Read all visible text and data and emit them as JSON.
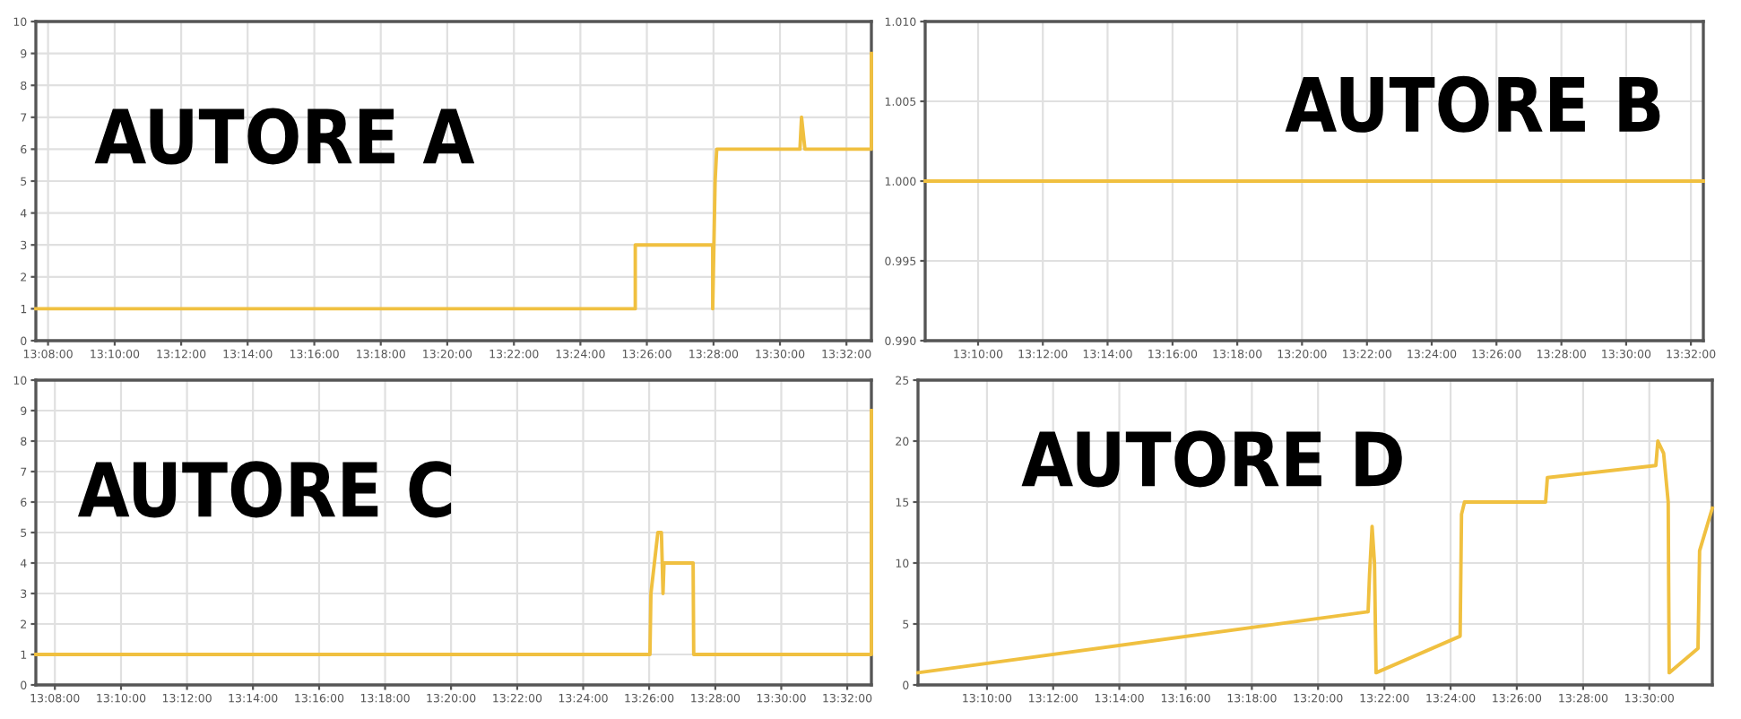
{
  "chart_data": [
    {
      "type": "line",
      "title": "AUTORE A",
      "grid": true,
      "xlim": [
        13.1272,
        13.5458
      ],
      "ylim": [
        0,
        10
      ],
      "yticks": [
        0,
        1,
        2,
        3,
        4,
        5,
        6,
        7,
        8,
        9,
        10
      ],
      "xticks": [
        {
          "value": 13.1333,
          "label": "13:08:00"
        },
        {
          "value": 13.1667,
          "label": "13:10:00"
        },
        {
          "value": 13.2,
          "label": "13:12:00"
        },
        {
          "value": 13.2333,
          "label": "13:14:00"
        },
        {
          "value": 13.2667,
          "label": "13:16:00"
        },
        {
          "value": 13.3,
          "label": "13:18:00"
        },
        {
          "value": 13.3333,
          "label": "13:20:00"
        },
        {
          "value": 13.3667,
          "label": "13:22:00"
        },
        {
          "value": 13.4,
          "label": "13:24:00"
        },
        {
          "value": 13.4333,
          "label": "13:26:00"
        },
        {
          "value": 13.4667,
          "label": "13:28:00"
        },
        {
          "value": 13.5,
          "label": "13:30:00"
        },
        {
          "value": 13.5333,
          "label": "13:32:00"
        }
      ],
      "series": [
        {
          "color": "#f0c040",
          "x": [
            13.1272,
            13.4275,
            13.4275,
            13.4663,
            13.4663,
            13.4675,
            13.4683,
            13.51,
            13.5108,
            13.5125,
            13.5458,
            13.5458
          ],
          "values": [
            1,
            1,
            3,
            3,
            1,
            5,
            6,
            6,
            7,
            6,
            6,
            9
          ]
        }
      ]
    },
    {
      "type": "line",
      "title": "AUTORE B",
      "grid": true,
      "xlim": [
        13.1395,
        13.5397
      ],
      "ylim": [
        0.99,
        1.01
      ],
      "yticks": [
        {
          "value": 0.99,
          "label": "0.990"
        },
        {
          "value": 0.995,
          "label": "0.995"
        },
        {
          "value": 1.0,
          "label": "1.000"
        },
        {
          "value": 1.005,
          "label": "1.005"
        },
        {
          "value": 1.01,
          "label": "1.010"
        }
      ],
      "xticks": [
        {
          "value": 13.1667,
          "label": "13:10:00"
        },
        {
          "value": 13.2,
          "label": "13:12:00"
        },
        {
          "value": 13.2333,
          "label": "13:14:00"
        },
        {
          "value": 13.2667,
          "label": "13:16:00"
        },
        {
          "value": 13.3,
          "label": "13:18:00"
        },
        {
          "value": 13.3333,
          "label": "13:20:00"
        },
        {
          "value": 13.3667,
          "label": "13:22:00"
        },
        {
          "value": 13.4,
          "label": "13:24:00"
        },
        {
          "value": 13.4333,
          "label": "13:26:00"
        },
        {
          "value": 13.4667,
          "label": "13:28:00"
        },
        {
          "value": 13.5,
          "label": "13:30:00"
        },
        {
          "value": 13.5333,
          "label": "13:32:00"
        }
      ],
      "series": [
        {
          "color": "#f0c040",
          "x": [
            13.1395,
            13.5397
          ],
          "values": [
            1.0,
            1.0
          ]
        }
      ]
    },
    {
      "type": "line",
      "title": "AUTORE C",
      "grid": true,
      "xlim": [
        13.1237,
        13.5455
      ],
      "ylim": [
        0,
        10
      ],
      "yticks": [
        0,
        1,
        2,
        3,
        4,
        5,
        6,
        7,
        8,
        9,
        10
      ],
      "xticks": [
        {
          "value": 13.1333,
          "label": "13:08:00"
        },
        {
          "value": 13.1667,
          "label": "13:10:00"
        },
        {
          "value": 13.2,
          "label": "13:12:00"
        },
        {
          "value": 13.2333,
          "label": "13:14:00"
        },
        {
          "value": 13.2667,
          "label": "13:16:00"
        },
        {
          "value": 13.3,
          "label": "13:18:00"
        },
        {
          "value": 13.3333,
          "label": "13:20:00"
        },
        {
          "value": 13.3667,
          "label": "13:22:00"
        },
        {
          "value": 13.4,
          "label": "13:24:00"
        },
        {
          "value": 13.4333,
          "label": "13:26:00"
        },
        {
          "value": 13.4667,
          "label": "13:28:00"
        },
        {
          "value": 13.5,
          "label": "13:30:00"
        },
        {
          "value": 13.5333,
          "label": "13:32:00"
        }
      ],
      "series": [
        {
          "color": "#f0c040",
          "x": [
            13.1237,
            13.4337,
            13.4342,
            13.4377,
            13.4395,
            13.4403,
            13.4408,
            13.4555,
            13.4558,
            13.5455,
            13.5455
          ],
          "values": [
            1,
            1,
            3,
            5,
            5,
            3,
            4,
            4,
            1,
            1,
            9
          ]
        }
      ]
    },
    {
      "type": "line",
      "title": "AUTORE D",
      "grid": true,
      "xlim": [
        13.132,
        13.5317
      ],
      "ylim": [
        0,
        25
      ],
      "yticks": [
        0,
        5,
        10,
        15,
        20,
        25
      ],
      "xticks": [
        {
          "value": 13.1667,
          "label": "13:10:00"
        },
        {
          "value": 13.2,
          "label": "13:12:00"
        },
        {
          "value": 13.2333,
          "label": "13:14:00"
        },
        {
          "value": 13.2667,
          "label": "13:16:00"
        },
        {
          "value": 13.3,
          "label": "13:18:00"
        },
        {
          "value": 13.3333,
          "label": "13:20:00"
        },
        {
          "value": 13.3667,
          "label": "13:22:00"
        },
        {
          "value": 13.4,
          "label": "13:24:00"
        },
        {
          "value": 13.4333,
          "label": "13:26:00"
        },
        {
          "value": 13.4667,
          "label": "13:28:00"
        },
        {
          "value": 13.5,
          "label": "13:30:00"
        }
      ],
      "series": [
        {
          "color": "#f0c040",
          "x": [
            13.132,
            13.3585,
            13.3592,
            13.3605,
            13.3617,
            13.3625,
            13.4048,
            13.4055,
            13.407,
            13.4478,
            13.4487,
            13.5033,
            13.5043,
            13.5072,
            13.5095,
            13.51,
            13.5245,
            13.5253,
            13.5317
          ],
          "values": [
            1,
            6,
            9,
            13,
            10,
            1,
            4,
            14,
            15,
            15,
            17,
            18,
            20,
            19,
            15,
            1,
            3,
            11,
            14.5
          ]
        }
      ]
    }
  ]
}
